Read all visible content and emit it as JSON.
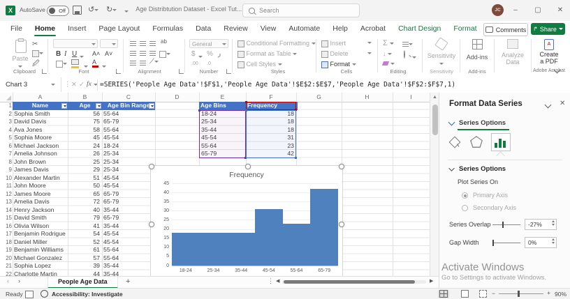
{
  "colors": {
    "accent_green": "#107C41",
    "table_header_blue": "#4472C4",
    "bar_blue": "#4E81BD",
    "range_values_blue": "#4472C4",
    "range_category_purple": "#7030A0",
    "range_name_red": "#C00000"
  },
  "titlebar": {
    "autosave_label": "AutoSave",
    "autosave_state": "Off",
    "title": "Age Distribtution Dataset - Excel Tut...",
    "search_placeholder": "Search",
    "avatar_initials": "JC",
    "minimize": "–",
    "maximize": "▢",
    "close": "✕"
  },
  "ribbon": {
    "tabs": [
      {
        "label": "File"
      },
      {
        "label": "Home",
        "active": true
      },
      {
        "label": "Insert"
      },
      {
        "label": "Page Layout"
      },
      {
        "label": "Formulas"
      },
      {
        "label": "Data"
      },
      {
        "label": "Review"
      },
      {
        "label": "View"
      },
      {
        "label": "Automate"
      },
      {
        "label": "Help"
      },
      {
        "label": "Acrobat"
      },
      {
        "label": "Chart Design",
        "contextual": true
      },
      {
        "label": "Format",
        "contextual": true
      }
    ],
    "comments": "Comments",
    "share": "Share",
    "clipboard": {
      "paste": "Paste",
      "label": "Clipboard"
    },
    "font": {
      "label": "Font",
      "bold": "B",
      "italic": "I",
      "underline": "U",
      "grow": "A˄",
      "shrink": "A˅",
      "color_letter": "A"
    },
    "alignment": {
      "label": "Alignment",
      "wrap": "ab"
    },
    "number": {
      "format": "General",
      "label": "Number",
      "currency": "$",
      "percent": "%",
      "comma": "٫",
      "inc": ".00",
      "dec": ".0"
    },
    "styles": {
      "items": [
        "Conditional Formatting",
        "Format as Table",
        "Cell Styles"
      ],
      "label": "Styles"
    },
    "cells": {
      "items": [
        "Insert",
        "Delete",
        "Format"
      ],
      "label": "Cells"
    },
    "editing": {
      "label": "Editing",
      "autosum": "Σ"
    },
    "sensitivity": {
      "button": "Sensitivity",
      "label": "Sensitivity"
    },
    "addins": {
      "button": "Add-ins",
      "label": "Add-ins"
    },
    "analyze": {
      "line1": "Analyze",
      "line2": "Data"
    },
    "acrobat": {
      "line1": "Create",
      "line2": "a PDF",
      "label": "Adobe Acrobat"
    }
  },
  "formula_bar": {
    "name_box": "Chart 3",
    "formula": "=SERIES('People Age Data'!$F$1,'People Age Data'!$E$2:$E$7,'People Age Data'!$F$2:$F$7,1)"
  },
  "grid": {
    "columns": [
      "A",
      "B",
      "C",
      "D",
      "E",
      "F",
      "G",
      "H",
      "I"
    ],
    "headers": {
      "name": "Name",
      "age": "Age",
      "bin": "Age Bin Range"
    },
    "rows": [
      [
        "Sophia Smith",
        56,
        "55-64"
      ],
      [
        "David Davis",
        75,
        "65-79"
      ],
      [
        "Ava Jones",
        58,
        "55-64"
      ],
      [
        "Sophia Moore",
        45,
        "45-54"
      ],
      [
        "Michael Jackson",
        24,
        "18-24"
      ],
      [
        "Amelia Johnson",
        26,
        "25-34"
      ],
      [
        "John Brown",
        25,
        "25-34"
      ],
      [
        "James Davis",
        29,
        "25-34"
      ],
      [
        "Alexander Martin",
        51,
        "45-54"
      ],
      [
        "John Moore",
        50,
        "45-54"
      ],
      [
        "James Moore",
        65,
        "65-79"
      ],
      [
        "Amelia Davis",
        72,
        "65-79"
      ],
      [
        "Henry Jackson",
        40,
        "35-44"
      ],
      [
        "David Smith",
        79,
        "65-79"
      ],
      [
        "Olivia Wilson",
        41,
        "35-44"
      ],
      [
        "Benjamin Rodrigue",
        54,
        "45-54"
      ],
      [
        "Daniel Miller",
        52,
        "45-54"
      ],
      [
        "Benjamin Williams",
        61,
        "55-64"
      ],
      [
        "Michael Gonzalez",
        57,
        "55-64"
      ],
      [
        "Sophia Lopez",
        39,
        "35-44"
      ],
      [
        "Charlotte Martin",
        44,
        "35-44"
      ]
    ],
    "bins_table": {
      "h1": "Age Bins",
      "h2": "Frequency",
      "rows": [
        [
          "18-24",
          18
        ],
        [
          "25-34",
          18
        ],
        [
          "35-44",
          18
        ],
        [
          "45-54",
          31
        ],
        [
          "55-64",
          23
        ],
        [
          "65-79",
          42
        ]
      ]
    }
  },
  "chart_data": {
    "type": "bar",
    "title": "Frequency",
    "categories": [
      "18-24",
      "25-34",
      "35-44",
      "45-54",
      "55-64",
      "65-79"
    ],
    "values": [
      18,
      18,
      18,
      31,
      23,
      42
    ],
    "xlabel": "",
    "ylabel": "",
    "ylim": [
      0,
      45
    ],
    "ytick_step": 5,
    "grid": true,
    "legend_position": "none",
    "bar_color": "#4E81BD",
    "gap_width_pct": 0,
    "series_overlap_pct": -27
  },
  "pane": {
    "title": "Format Data Series",
    "series_options_link": "Series Options",
    "section_header": "Series Options",
    "plot_series_on": "Plot Series On",
    "primary_axis": "Primary Axis",
    "secondary_axis": "Secondary Axis",
    "series_overlap_label": "Series Overlap",
    "series_overlap_value": "-27%",
    "gap_width_label": "Gap Width",
    "gap_width_value": "0%"
  },
  "sheet_bar": {
    "tab": "People Age Data",
    "add": "+"
  },
  "status_bar": {
    "ready": "Ready",
    "accessibility": "Accessibility: Investigate",
    "zoom": "90%"
  },
  "watermark": {
    "line1": "Activate Windows",
    "line2": "Go to Settings to activate Windows."
  }
}
